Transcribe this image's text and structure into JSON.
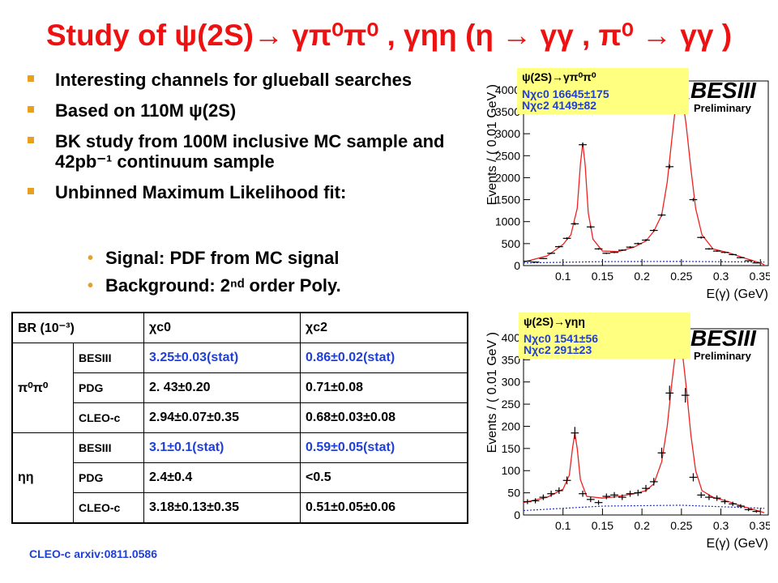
{
  "title": "Study of ψ(2S)→ γπ⁰π⁰ , γηη (η → γγ , π⁰ → γγ )",
  "bullets": [
    "Interesting channels for glueball searches",
    "Based on 110M ψ(2S)",
    "BK study from 100M inclusive MC sample and 42pb⁻¹ continuum  sample",
    "Unbinned Maximum Likelihood fit:"
  ],
  "sub_bullets": [
    "Signal:  PDF from MC signal",
    "Background:  2ⁿᵈ order Poly."
  ],
  "table": {
    "header": [
      "BR (10⁻³)",
      "",
      "χc0",
      "χc2"
    ],
    "groups": [
      {
        "channel": "π⁰π⁰",
        "rows": [
          {
            "source": "BESIII",
            "c0": "3.25±0.03(stat)",
            "c2": "0.86±0.02(stat)"
          },
          {
            "source": "PDG",
            "c0": "2. 43±0.20",
            "c2": "0.71±0.08"
          },
          {
            "source": "CLEO-c",
            "c0": "2.94±0.07±0.35",
            "c2": "0.68±0.03±0.08"
          }
        ]
      },
      {
        "channel": "ηη",
        "rows": [
          {
            "source": "BESIII",
            "c0": "3.1±0.1(stat)",
            "c2": "0.59±0.05(stat)"
          },
          {
            "source": "PDG",
            "c0": "2.4±0.4",
            "c2": "<0.5"
          },
          {
            "source": "CLEO-c",
            "c0": "3.18±0.13±0.35",
            "c2": "0.51±0.05±0.06"
          }
        ]
      }
    ]
  },
  "reference": "CLEO-c arxiv:0811.0586",
  "colors": {
    "title": "#ee1111",
    "bullet": "#e8a020",
    "blue_text": "#1f3fd6",
    "fit": "#ee2222",
    "background_fit": "#2233aa",
    "legend_bg": "#ffff80"
  },
  "chart_data": [
    {
      "type": "scatter",
      "legend_title": "ψ(2S)→γπ⁰π⁰",
      "legend_lines": [
        "Nχc0 16645±175",
        "Nχc2 4149±82"
      ],
      "watermark": "BESIII",
      "watermark_sub": "Preliminary",
      "xlabel": "E(γ) (GeV)",
      "ylabel": "Events / ( 0.01 GeV )",
      "xlim": [
        0.05,
        0.36
      ],
      "ylim": [
        0,
        4200
      ],
      "x_ticks": [
        "0.1",
        "0.15",
        "0.2",
        "0.25",
        "0.3",
        "0.35"
      ],
      "y_ticks": [
        "0",
        "500",
        "1000",
        "1500",
        "2000",
        "2500",
        "3000",
        "3500",
        "4000"
      ],
      "y_tick_values": [
        0,
        500,
        1000,
        1500,
        2000,
        2500,
        3000,
        3500,
        4000
      ],
      "x_tick_values": [
        0.1,
        0.15,
        0.2,
        0.25,
        0.3,
        0.35
      ],
      "points": [
        [
          0.055,
          100
        ],
        [
          0.065,
          80
        ],
        [
          0.075,
          160
        ],
        [
          0.085,
          280
        ],
        [
          0.095,
          430
        ],
        [
          0.105,
          620
        ],
        [
          0.115,
          950
        ],
        [
          0.125,
          2750
        ],
        [
          0.135,
          880
        ],
        [
          0.145,
          380
        ],
        [
          0.155,
          280
        ],
        [
          0.165,
          300
        ],
        [
          0.175,
          350
        ],
        [
          0.185,
          420
        ],
        [
          0.195,
          500
        ],
        [
          0.205,
          580
        ],
        [
          0.215,
          800
        ],
        [
          0.225,
          1150
        ],
        [
          0.235,
          2250
        ],
        [
          0.245,
          3900
        ],
        [
          0.255,
          3800
        ],
        [
          0.265,
          1500
        ],
        [
          0.275,
          640
        ],
        [
          0.285,
          380
        ],
        [
          0.295,
          330
        ],
        [
          0.305,
          300
        ],
        [
          0.315,
          250
        ],
        [
          0.325,
          180
        ],
        [
          0.335,
          110
        ],
        [
          0.345,
          60
        ]
      ],
      "fit": [
        [
          0.05,
          80
        ],
        [
          0.08,
          220
        ],
        [
          0.1,
          480
        ],
        [
          0.11,
          700
        ],
        [
          0.118,
          1300
        ],
        [
          0.122,
          2300
        ],
        [
          0.125,
          2780
        ],
        [
          0.128,
          2300
        ],
        [
          0.132,
          1200
        ],
        [
          0.138,
          600
        ],
        [
          0.15,
          330
        ],
        [
          0.17,
          320
        ],
        [
          0.19,
          420
        ],
        [
          0.205,
          560
        ],
        [
          0.215,
          780
        ],
        [
          0.225,
          1150
        ],
        [
          0.232,
          1900
        ],
        [
          0.238,
          2900
        ],
        [
          0.243,
          3700
        ],
        [
          0.247,
          3950
        ],
        [
          0.251,
          3850
        ],
        [
          0.256,
          3200
        ],
        [
          0.262,
          2200
        ],
        [
          0.268,
          1300
        ],
        [
          0.276,
          700
        ],
        [
          0.29,
          380
        ],
        [
          0.31,
          290
        ],
        [
          0.33,
          170
        ],
        [
          0.35,
          60
        ],
        [
          0.355,
          20
        ]
      ],
      "background": [
        [
          0.05,
          60
        ],
        [
          0.15,
          90
        ],
        [
          0.25,
          95
        ],
        [
          0.355,
          80
        ]
      ]
    },
    {
      "type": "scatter",
      "legend_title": "ψ(2S)→γηη",
      "legend_lines": [
        "Nχc0 1541±56",
        "Nχc2 291±23"
      ],
      "watermark": "BESIII",
      "watermark_sub": "Preliminary",
      "xlabel": "E(γ) (GeV)",
      "ylabel": "Events / ( 0.01 GeV )",
      "xlim": [
        0.05,
        0.36
      ],
      "ylim": [
        0,
        420
      ],
      "x_ticks": [
        "0.1",
        "0.15",
        "0.2",
        "0.25",
        "0.3",
        "0.35"
      ],
      "y_ticks": [
        "0",
        "50",
        "100",
        "150",
        "200",
        "250",
        "300",
        "350",
        "400"
      ],
      "y_tick_values": [
        0,
        50,
        100,
        150,
        200,
        250,
        300,
        350,
        400
      ],
      "x_tick_values": [
        0.1,
        0.15,
        0.2,
        0.25,
        0.3,
        0.35
      ],
      "points": [
        [
          0.055,
          30
        ],
        [
          0.065,
          32
        ],
        [
          0.075,
          40
        ],
        [
          0.085,
          48
        ],
        [
          0.095,
          55
        ],
        [
          0.105,
          78
        ],
        [
          0.115,
          185
        ],
        [
          0.125,
          48
        ],
        [
          0.135,
          35
        ],
        [
          0.145,
          28
        ],
        [
          0.155,
          42
        ],
        [
          0.165,
          45
        ],
        [
          0.175,
          40
        ],
        [
          0.185,
          48
        ],
        [
          0.195,
          50
        ],
        [
          0.205,
          60
        ],
        [
          0.215,
          75
        ],
        [
          0.225,
          140
        ],
        [
          0.235,
          275
        ],
        [
          0.245,
          398
        ],
        [
          0.255,
          270
        ],
        [
          0.265,
          85
        ],
        [
          0.275,
          45
        ],
        [
          0.285,
          40
        ],
        [
          0.295,
          38
        ],
        [
          0.305,
          30
        ],
        [
          0.315,
          25
        ],
        [
          0.325,
          20
        ],
        [
          0.335,
          12
        ],
        [
          0.345,
          8
        ]
      ],
      "fit": [
        [
          0.05,
          28
        ],
        [
          0.08,
          40
        ],
        [
          0.1,
          58
        ],
        [
          0.108,
          90
        ],
        [
          0.112,
          150
        ],
        [
          0.115,
          185
        ],
        [
          0.118,
          150
        ],
        [
          0.122,
          80
        ],
        [
          0.13,
          42
        ],
        [
          0.15,
          38
        ],
        [
          0.17,
          42
        ],
        [
          0.19,
          48
        ],
        [
          0.205,
          55
        ],
        [
          0.215,
          70
        ],
        [
          0.225,
          120
        ],
        [
          0.232,
          200
        ],
        [
          0.238,
          300
        ],
        [
          0.243,
          375
        ],
        [
          0.247,
          395
        ],
        [
          0.251,
          370
        ],
        [
          0.256,
          290
        ],
        [
          0.262,
          180
        ],
        [
          0.268,
          100
        ],
        [
          0.276,
          55
        ],
        [
          0.29,
          40
        ],
        [
          0.31,
          30
        ],
        [
          0.33,
          18
        ],
        [
          0.35,
          8
        ],
        [
          0.355,
          5
        ]
      ],
      "background": [
        [
          0.05,
          10
        ],
        [
          0.15,
          20
        ],
        [
          0.25,
          22
        ],
        [
          0.355,
          15
        ]
      ]
    }
  ]
}
